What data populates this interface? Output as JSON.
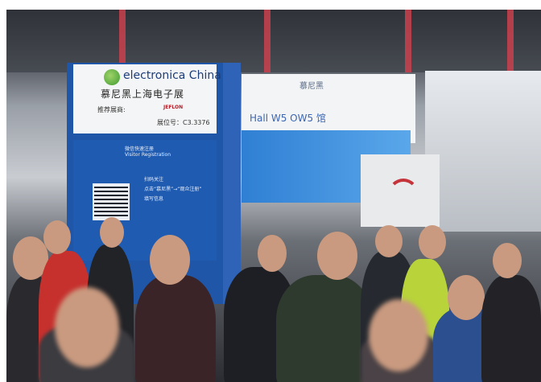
{
  "booth": {
    "brand": "electronica China",
    "title_cn": "慕尼黑上海电子展",
    "recommended_label": "推荐展商:",
    "exhibitor": "JEFLON",
    "stand_no": "展位号：C3.3376",
    "panel_title": "微信快速注册",
    "panel_subtitle": "Visitor Registration",
    "steps": [
      "扫码关注",
      "点击“慕尼黑”→“观众注册”",
      "填写信息"
    ]
  },
  "signs": {
    "hall": "Hall W5 OW5 馆",
    "top_brand": "慕尼黑"
  },
  "colors": {
    "booth_blue": "#1f56a8",
    "brand_green": "#3e9b2f",
    "wifi_red": "#c5333b",
    "lanyard_orange": "#e8862a"
  }
}
